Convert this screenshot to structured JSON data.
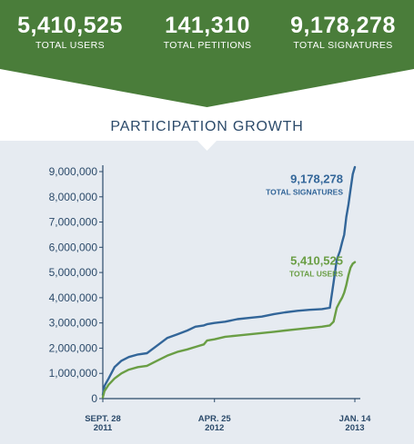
{
  "stats": [
    {
      "value": "5,410,525",
      "label": "TOTAL USERS"
    },
    {
      "value": "141,310",
      "label": "TOTAL PETITIONS"
    },
    {
      "value": "9,178,278",
      "label": "TOTAL SIGNATURES"
    }
  ],
  "section_title": "PARTICIPATION GROWTH",
  "colors": {
    "banner": "#4a7d3a",
    "banner_dark": "#3f6e31",
    "chart_bg": "#e6ebf1",
    "signatures": "#336699",
    "users": "#6a9e45",
    "text": "#2b4a6a"
  },
  "chart_data": {
    "type": "line",
    "title": "PARTICIPATION GROWTH",
    "xlabel": "",
    "ylabel": "",
    "ylim": [
      0,
      9000000
    ],
    "yticks": [
      0,
      1000000,
      2000000,
      3000000,
      4000000,
      5000000,
      6000000,
      7000000,
      8000000,
      9000000
    ],
    "ytick_labels": [
      "0",
      "1,000,000",
      "2,000,000",
      "3,000,000",
      "4,000,000",
      "5,000,000",
      "6,000,000",
      "7,000,000",
      "8,000,000",
      "9,000,000"
    ],
    "xlim": [
      "2011-09-28",
      "2013-01-14"
    ],
    "xticks": [
      {
        "date": "2011-09-28",
        "line1": "SEPT. 28",
        "line2": "2011"
      },
      {
        "date": "2012-04-25",
        "line1": "APR. 25",
        "line2": "2012"
      },
      {
        "date": "2013-01-14",
        "line1": "JAN. 14",
        "line2": "2013"
      }
    ],
    "grid": false,
    "series": [
      {
        "name": "TOTAL SIGNATURES",
        "end_label_value": "9,178,278",
        "x": [
          "2011-09-28",
          "2011-10-01",
          "2011-10-09",
          "2011-10-20",
          "2011-11-02",
          "2011-11-16",
          "2011-12-03",
          "2011-12-20",
          "2012-01-08",
          "2012-01-27",
          "2012-02-15",
          "2012-03-05",
          "2012-03-20",
          "2012-04-05",
          "2012-04-11",
          "2012-04-25",
          "2012-05-15",
          "2012-06-07",
          "2012-06-30",
          "2012-07-23",
          "2012-08-15",
          "2012-09-05",
          "2012-09-28",
          "2012-10-21",
          "2012-11-13",
          "2012-11-28",
          "2012-12-05",
          "2012-12-11",
          "2012-12-17",
          "2012-12-21",
          "2012-12-25",
          "2012-12-29",
          "2013-01-02",
          "2013-01-06",
          "2013-01-10",
          "2013-01-14"
        ],
        "values": [
          150000,
          500000,
          800000,
          1250000,
          1500000,
          1650000,
          1750000,
          1800000,
          2100000,
          2400000,
          2550000,
          2700000,
          2850000,
          2900000,
          2950000,
          3000000,
          3050000,
          3150000,
          3200000,
          3250000,
          3350000,
          3420000,
          3480000,
          3520000,
          3550000,
          3600000,
          4600000,
          5500000,
          5850000,
          6200000,
          6500000,
          7200000,
          7700000,
          8300000,
          8900000,
          9178278
        ]
      },
      {
        "name": "TOTAL USERS",
        "end_label_value": "5,410,525",
        "x": [
          "2011-09-28",
          "2011-10-01",
          "2011-10-09",
          "2011-10-20",
          "2011-11-02",
          "2011-11-16",
          "2011-12-03",
          "2011-12-20",
          "2012-01-08",
          "2012-01-27",
          "2012-02-15",
          "2012-03-05",
          "2012-03-20",
          "2012-04-05",
          "2012-04-11",
          "2012-04-25",
          "2012-05-15",
          "2012-06-07",
          "2012-06-30",
          "2012-07-23",
          "2012-08-15",
          "2012-09-05",
          "2012-09-28",
          "2012-10-21",
          "2012-11-13",
          "2012-11-28",
          "2012-12-05",
          "2012-12-11",
          "2012-12-17",
          "2012-12-21",
          "2012-12-25",
          "2012-12-29",
          "2013-01-02",
          "2013-01-06",
          "2013-01-10",
          "2013-01-14"
        ],
        "values": [
          50000,
          300000,
          550000,
          800000,
          1000000,
          1150000,
          1250000,
          1300000,
          1500000,
          1700000,
          1850000,
          1950000,
          2050000,
          2150000,
          2300000,
          2350000,
          2450000,
          2500000,
          2550000,
          2600000,
          2650000,
          2700000,
          2750000,
          2800000,
          2850000,
          2900000,
          3050000,
          3600000,
          3850000,
          4000000,
          4200000,
          4500000,
          4900000,
          5200000,
          5350000,
          5410525
        ]
      }
    ]
  }
}
